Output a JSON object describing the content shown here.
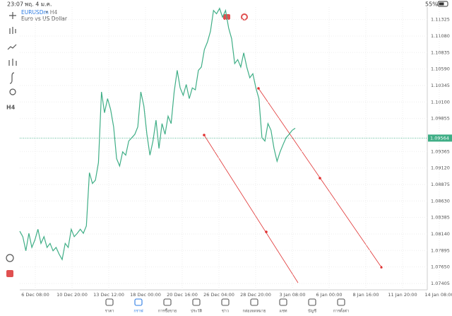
{
  "status_bar": {
    "time": "23:07",
    "date": "พฤ. 4 ม.ค.",
    "battery": "55%"
  },
  "toolbar": {
    "timeframe": "H4"
  },
  "chart_data": {
    "type": "line",
    "symbol": "EURUSDm",
    "timeframe": "• H4",
    "description": "Euro vs US Dollar",
    "color": "#3fae86",
    "values": [
      1.0818,
      1.081,
      1.0789,
      1.0815,
      1.0794,
      1.0805,
      1.0821,
      1.08,
      1.081,
      1.0794,
      1.08,
      1.0789,
      1.0794,
      1.0784,
      1.0776,
      1.08,
      1.0794,
      1.0821,
      1.081,
      1.0815,
      1.0821,
      1.0815,
      1.0826,
      1.0905,
      1.0889,
      1.0894,
      1.092,
      1.1025,
      1.0994,
      1.1015,
      1.0999,
      1.0973,
      1.0926,
      1.0915,
      1.0936,
      1.0931,
      1.0952,
      1.0957,
      1.0962,
      1.0973,
      1.1025,
      1.1004,
      1.0962,
      1.0931,
      1.0952,
      1.0983,
      1.0941,
      1.0978,
      1.0962,
      1.0989,
      1.0978,
      1.1025,
      1.1057,
      1.1031,
      1.102,
      1.1036,
      1.1015,
      1.1031,
      1.1028,
      1.1057,
      1.1062,
      1.1088,
      1.1099,
      1.1115,
      1.1146,
      1.1141,
      1.1149,
      1.1136,
      1.1146,
      1.112,
      1.1104,
      1.1067,
      1.1073,
      1.1062,
      1.1083,
      1.1062,
      1.1046,
      1.1052,
      1.1031,
      1.1015,
      1.0957,
      1.0952,
      1.0978,
      1.0968,
      1.0941,
      1.0922,
      1.0936,
      1.0947,
      1.0957,
      1.0962,
      1.0968,
      1.0971
    ],
    "x_labels": [
      "6 Dec 08:00",
      "10 Dec 20:00",
      "13 Dec 12:00",
      "18 Dec 00:00",
      "20 Dec 16:00",
      "26 Dec 04:00",
      "28 Dec 20:00",
      "3 Jan 08:00",
      "6 Jan 00:00",
      "8 Jan 16:00",
      "11 Jan 20:00",
      "14 Jan 08:00"
    ],
    "ylim": [
      1.0731,
      1.1151
    ],
    "yticks": [
      1.11325,
      {
        "value": 1.1108,
        "label": "1.11080"
      },
      1.10835,
      {
        "value": 1.1059,
        "label": "1.10590"
      },
      1.10345,
      {
        "value": 1.101,
        "label": "1.10100"
      },
      1.09855,
      1.09365,
      {
        "value": 1.0912,
        "label": "1.09120"
      },
      1.08875,
      {
        "value": 1.0863,
        "label": "1.08630"
      },
      1.08385,
      {
        "value": 1.0814,
        "label": "1.08140"
      },
      1.07895,
      {
        "value": 1.0765,
        "label": "1.07650"
      },
      1.07405
    ],
    "current_price": 1.09564,
    "grid": true
  },
  "nav": [
    "ราคา",
    "กราฟ",
    "การซื้อขาย",
    "ประวัติ",
    "ข่าว",
    "กล่องจดหมาย",
    "แชท",
    "บัญชี",
    "การตั้งค่า"
  ]
}
